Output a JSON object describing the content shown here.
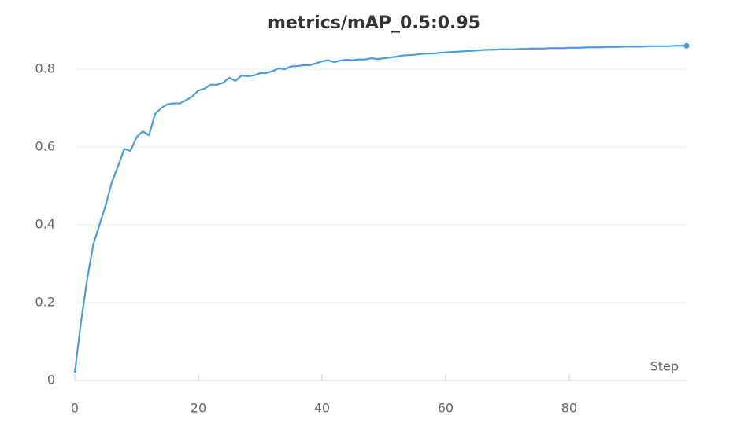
{
  "chart_data": {
    "type": "line",
    "title": "metrics/mAP_0.5:0.95",
    "x_label": "Step",
    "x": [
      0,
      1,
      2,
      3,
      4,
      5,
      6,
      7,
      8,
      9,
      10,
      11,
      12,
      13,
      14,
      15,
      16,
      17,
      18,
      19,
      20,
      21,
      22,
      23,
      24,
      25,
      26,
      27,
      28,
      29,
      30,
      31,
      32,
      33,
      34,
      35,
      36,
      37,
      38,
      39,
      40,
      41,
      42,
      43,
      44,
      45,
      46,
      47,
      48,
      49,
      50,
      51,
      52,
      53,
      54,
      55,
      56,
      57,
      58,
      59,
      60,
      61,
      62,
      63,
      64,
      65,
      66,
      67,
      68,
      69,
      70,
      71,
      72,
      73,
      74,
      75,
      76,
      77,
      78,
      79,
      80,
      81,
      82,
      83,
      84,
      85,
      86,
      87,
      88,
      89,
      90,
      91,
      92,
      93,
      94,
      95,
      96,
      97,
      98,
      99
    ],
    "values": [
      0.02,
      0.15,
      0.26,
      0.35,
      0.4,
      0.45,
      0.51,
      0.55,
      0.595,
      0.59,
      0.625,
      0.64,
      0.63,
      0.685,
      0.7,
      0.71,
      0.712,
      0.712,
      0.72,
      0.73,
      0.745,
      0.75,
      0.76,
      0.76,
      0.765,
      0.778,
      0.77,
      0.784,
      0.782,
      0.784,
      0.79,
      0.79,
      0.795,
      0.802,
      0.8,
      0.807,
      0.808,
      0.81,
      0.81,
      0.815,
      0.82,
      0.823,
      0.818,
      0.822,
      0.824,
      0.823,
      0.825,
      0.825,
      0.828,
      0.826,
      0.828,
      0.83,
      0.832,
      0.835,
      0.836,
      0.837,
      0.839,
      0.84,
      0.84,
      0.842,
      0.843,
      0.844,
      0.845,
      0.846,
      0.847,
      0.848,
      0.849,
      0.85,
      0.85,
      0.851,
      0.851,
      0.851,
      0.852,
      0.852,
      0.853,
      0.853,
      0.853,
      0.854,
      0.854,
      0.854,
      0.855,
      0.855,
      0.855,
      0.856,
      0.856,
      0.856,
      0.857,
      0.857,
      0.857,
      0.858,
      0.858,
      0.858,
      0.858,
      0.859,
      0.859,
      0.859,
      0.859,
      0.86,
      0.86,
      0.86
    ],
    "color": "#4a9ce0",
    "xlim": [
      0,
      99
    ],
    "ylim": [
      0,
      0.87
    ],
    "xticks": [
      0,
      20,
      40,
      60,
      80
    ],
    "yticks": [
      0,
      0.2,
      0.4,
      0.6,
      0.8
    ],
    "grid": true
  }
}
